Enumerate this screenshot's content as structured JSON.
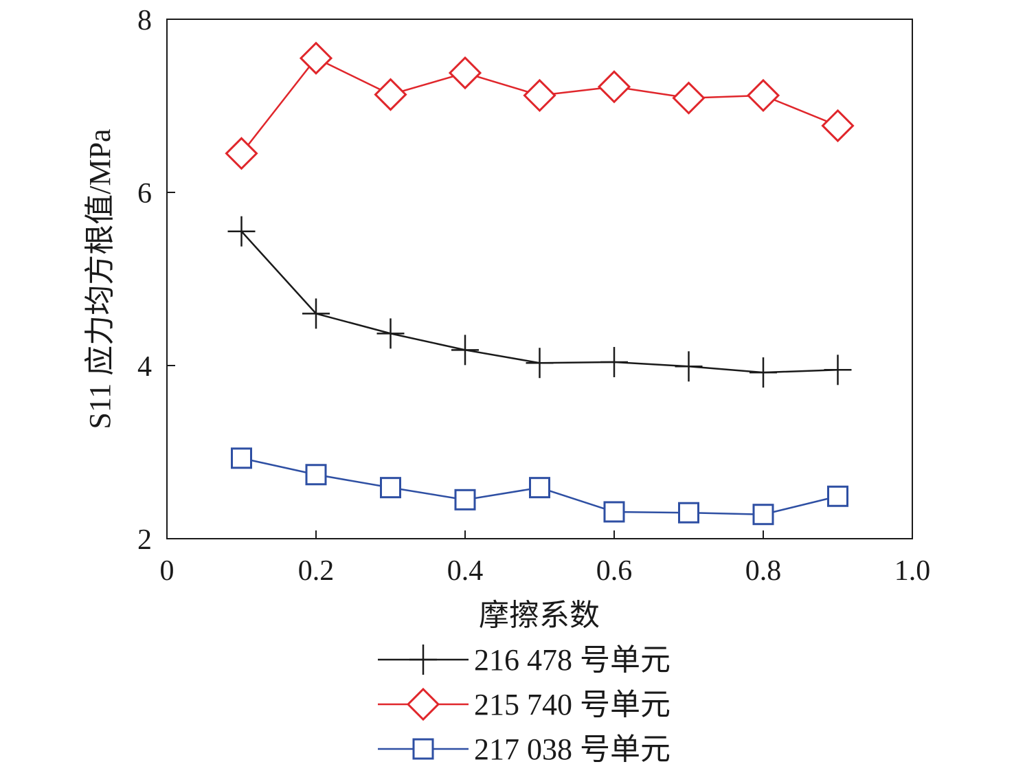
{
  "chart_data": {
    "type": "line",
    "title": "",
    "xlabel": "摩擦系数",
    "ylabel": "S11 应力均方根值/MPa",
    "xlim": [
      0,
      1.0
    ],
    "ylim": [
      2,
      8
    ],
    "xticks": [
      0,
      0.2,
      0.4,
      0.6,
      0.8,
      1.0
    ],
    "xtick_labels": [
      "0",
      "0.2",
      "0.4",
      "0.6",
      "0.8",
      "1.0"
    ],
    "yticks": [
      2,
      4,
      6,
      8
    ],
    "ytick_labels": [
      "2",
      "4",
      "6",
      "8"
    ],
    "grid": false,
    "legend_position": "bottom",
    "x": [
      0.1,
      0.2,
      0.3,
      0.4,
      0.5,
      0.6,
      0.7,
      0.8,
      0.9
    ],
    "series": [
      {
        "name": "216 478 号单元",
        "color": "#1a1a1a",
        "marker": "plus",
        "values": [
          5.55,
          4.6,
          4.37,
          4.18,
          4.03,
          4.04,
          3.99,
          3.92,
          3.95
        ]
      },
      {
        "name": "215 740 号单元",
        "color": "#e0262b",
        "marker": "diamond",
        "values": [
          6.45,
          7.55,
          7.13,
          7.38,
          7.12,
          7.22,
          7.09,
          7.12,
          6.77
        ]
      },
      {
        "name": "217 038 号单元",
        "color": "#2e4fa3",
        "marker": "square",
        "values": [
          2.93,
          2.74,
          2.59,
          2.45,
          2.59,
          2.31,
          2.3,
          2.28,
          2.49
        ]
      }
    ]
  }
}
